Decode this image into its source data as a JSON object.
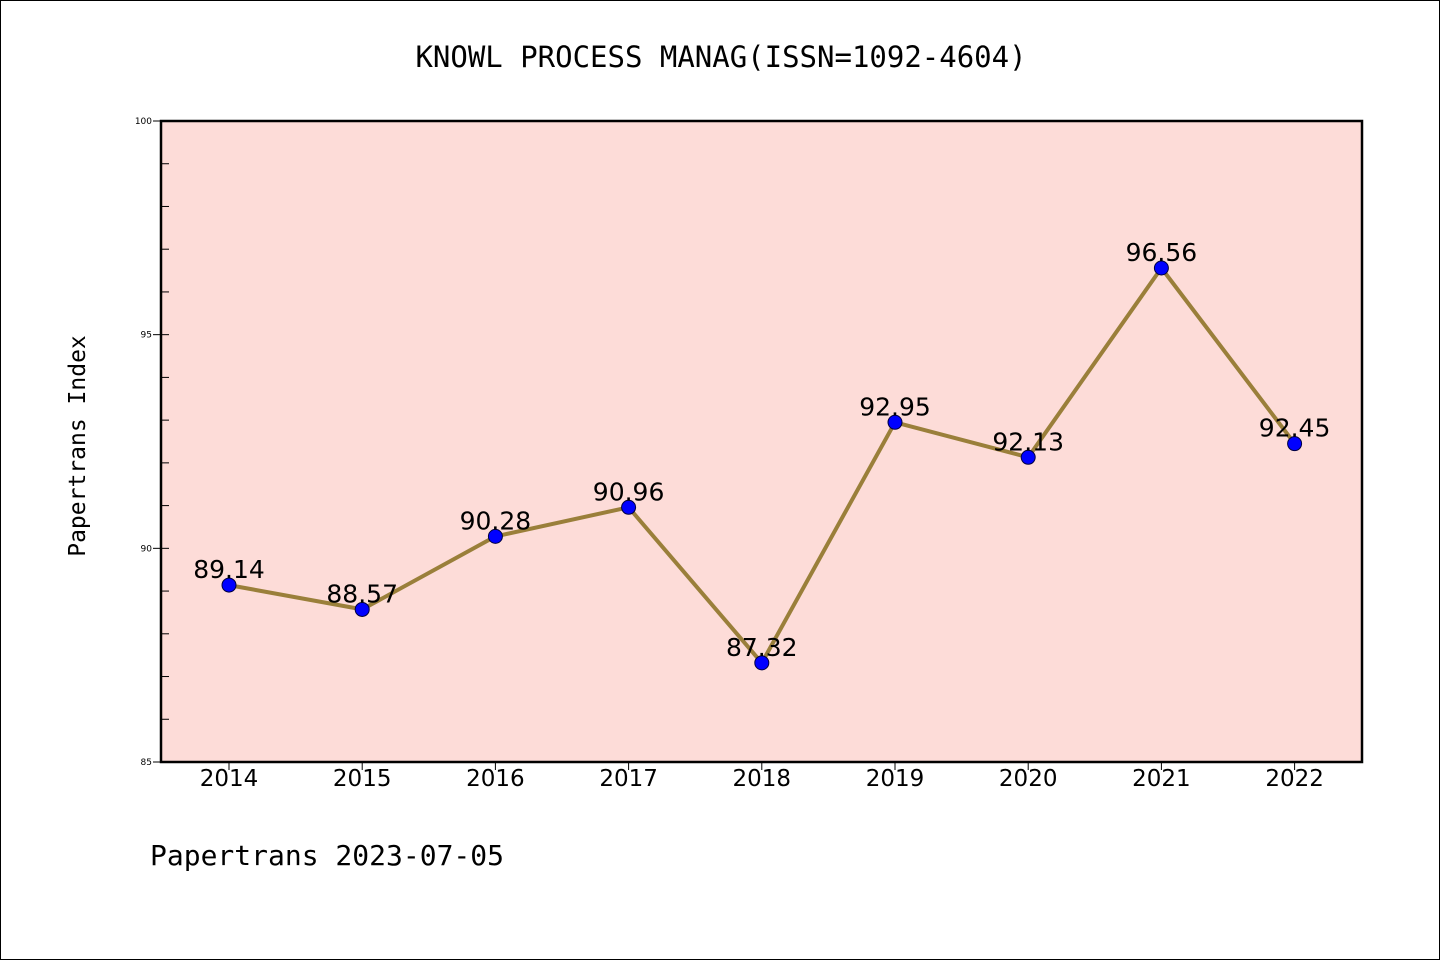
{
  "chart_data": {
    "type": "line",
    "title": "KNOWL PROCESS MANAG(ISSN=1092-4604)",
    "xlabel": "",
    "ylabel": "Papertrans Index",
    "categories": [
      "2014",
      "2015",
      "2016",
      "2017",
      "2018",
      "2019",
      "2020",
      "2021",
      "2022"
    ],
    "series": [
      {
        "values": [
          89.14,
          88.57,
          90.28,
          90.96,
          87.32,
          92.95,
          92.13,
          96.56,
          92.45
        ],
        "labels": [
          "89.14",
          "88.57",
          "90.28",
          "90.96",
          "87.32",
          "92.95",
          "92.13",
          "96.56",
          "92.45"
        ]
      }
    ],
    "ylim": [
      85,
      100
    ],
    "yticks": [
      85,
      90,
      95,
      100
    ],
    "yticks_minor_step": 1,
    "grid": false,
    "legend": "none",
    "colors": {
      "plot_background": "#fddcd8",
      "line": "#9a7f3a",
      "marker": "#0000ff"
    }
  },
  "footer": "Papertrans 2023-07-05"
}
